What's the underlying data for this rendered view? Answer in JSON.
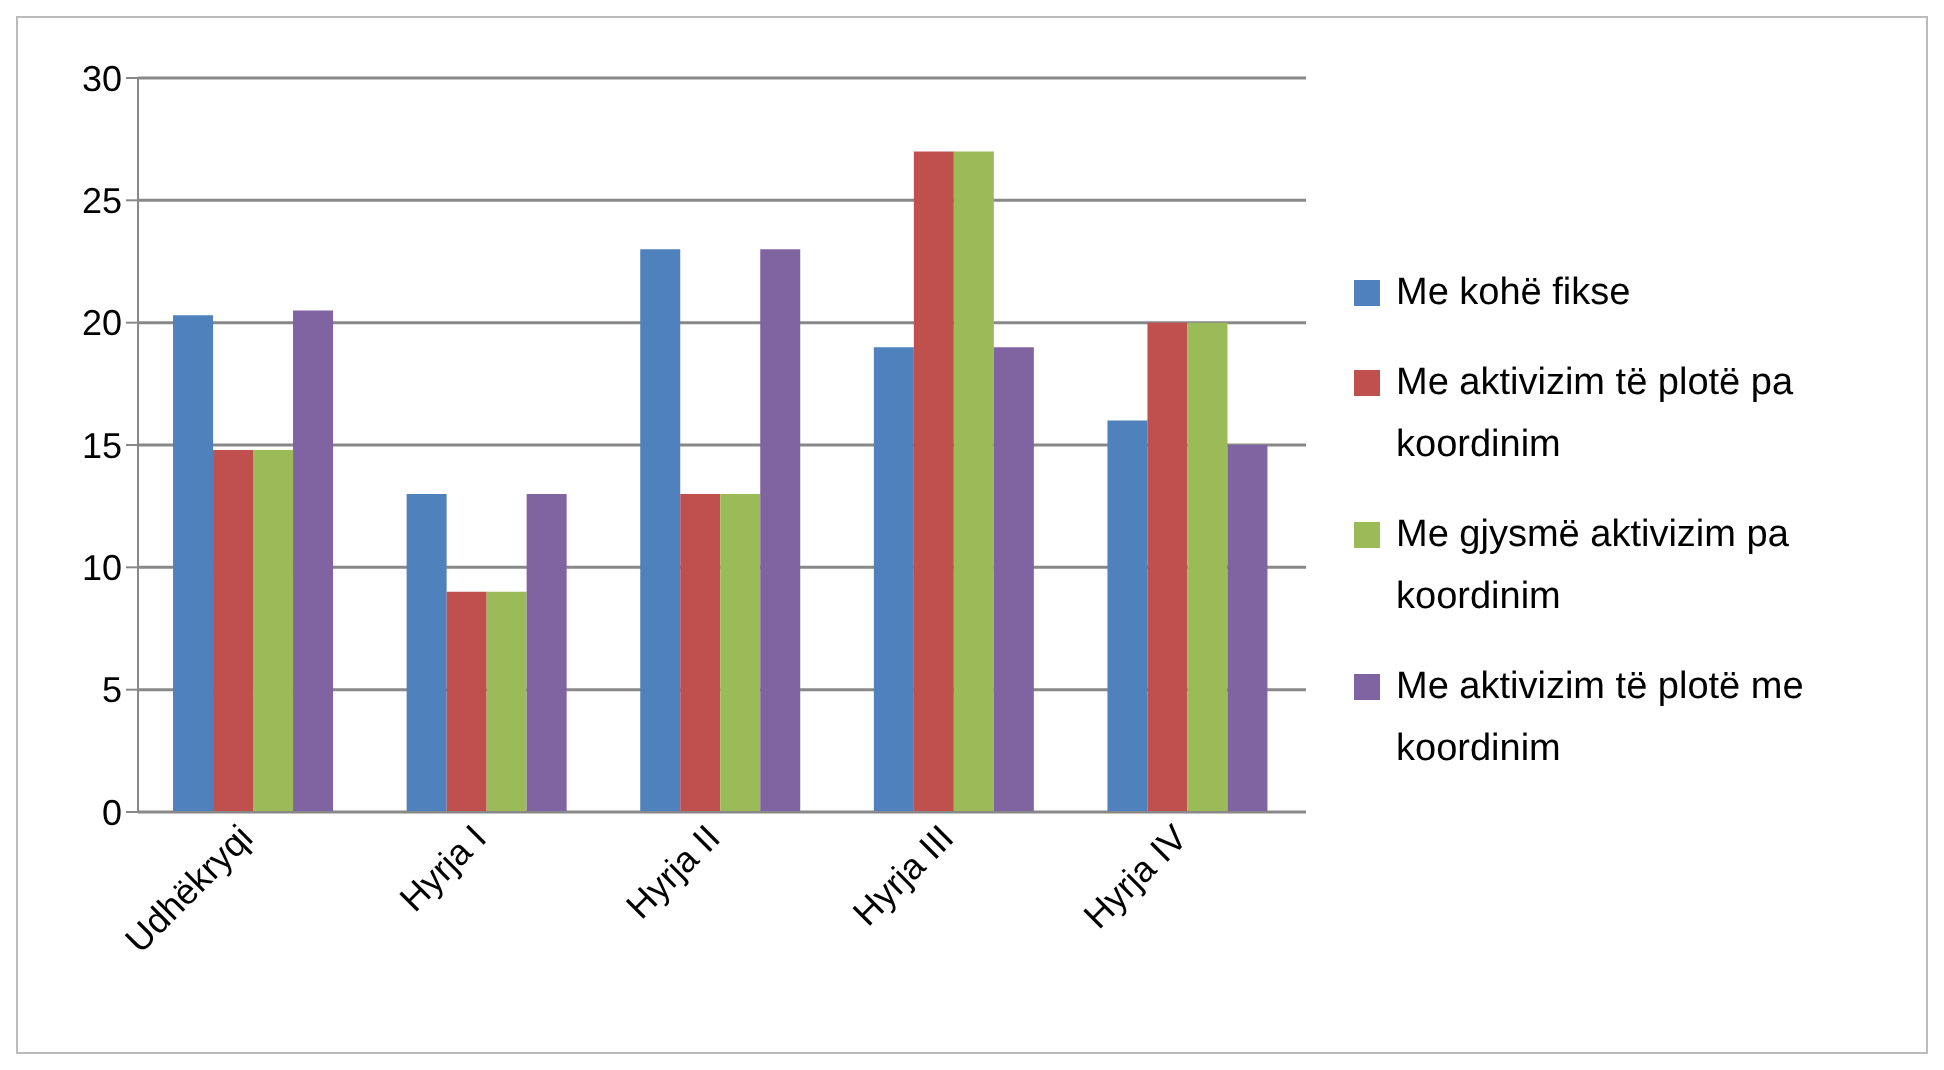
{
  "chart_data": {
    "type": "bar",
    "categories": [
      "Udhëkryqi",
      "Hyrja I",
      "Hyrja II",
      "Hyrja III",
      "Hyrja IV"
    ],
    "series": [
      {
        "name": "Me kohë fikse",
        "color": "#4f81bd",
        "values": [
          20.3,
          13,
          23,
          19,
          16
        ]
      },
      {
        "name": "Me aktivizim të plotë pa koordinim",
        "color": "#c0504d",
        "values": [
          14.8,
          9,
          13,
          27,
          20
        ]
      },
      {
        "name": "Me gjysmë aktivizim pa koordinim",
        "color": "#9bbb59",
        "values": [
          14.8,
          9,
          13,
          27,
          20
        ]
      },
      {
        "name": "Me aktivizim të plotë me koordinim",
        "color": "#8064a2",
        "values": [
          20.5,
          13,
          23,
          19,
          15
        ]
      }
    ],
    "ylim": [
      0,
      30
    ],
    "yticks": [
      0,
      5,
      10,
      15,
      20,
      25,
      30
    ],
    "grid": "y",
    "legend": "right"
  }
}
